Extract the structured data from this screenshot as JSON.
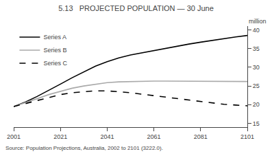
{
  "chart_data": {
    "type": "line",
    "title": "5.13   PROJECTED POPULATION — 30 June",
    "ylabel": "million",
    "annotations": [
      "Source: Population Projections, Australia, 2002 to 2101 (3222.0)."
    ],
    "x": [
      2001,
      2006,
      2011,
      2016,
      2021,
      2026,
      2031,
      2036,
      2041,
      2046,
      2051,
      2056,
      2061,
      2066,
      2071,
      2076,
      2081,
      2086,
      2091,
      2096,
      2101
    ],
    "series": [
      {
        "name": "Series A",
        "color": "#000000",
        "line_style": "solid",
        "values": [
          19.5,
          20.7,
          22.2,
          23.8,
          25.5,
          27.2,
          28.8,
          30.3,
          31.5,
          32.5,
          33.3,
          33.9,
          34.4,
          35.0,
          35.6,
          36.2,
          36.7,
          37.2,
          37.7,
          38.1,
          38.5
        ]
      },
      {
        "name": "Series B",
        "color": "#aaaaaa",
        "line_style": "solid",
        "values": [
          19.5,
          20.5,
          21.6,
          22.7,
          23.6,
          24.4,
          25.0,
          25.5,
          25.9,
          26.1,
          26.2,
          26.3,
          26.3,
          26.3,
          26.3,
          26.3,
          26.2,
          26.2,
          26.2,
          26.2,
          26.2
        ]
      },
      {
        "name": "Series C",
        "color": "#000000",
        "line_style": "dashed",
        "values": [
          19.5,
          20.3,
          21.2,
          22.0,
          22.7,
          23.2,
          23.5,
          23.7,
          23.7,
          23.5,
          23.2,
          22.8,
          22.4,
          22.0,
          21.6,
          21.2,
          20.8,
          20.4,
          20.1,
          19.9,
          19.7
        ]
      }
    ],
    "xlim": [
      2001,
      2101
    ],
    "xticks": [
      2001,
      2021,
      2041,
      2061,
      2081,
      2101
    ],
    "ylim": [
      14,
      41
    ],
    "yticks": [
      15,
      20,
      25,
      30,
      35,
      40
    ],
    "grid": false,
    "legend": "upper left"
  }
}
